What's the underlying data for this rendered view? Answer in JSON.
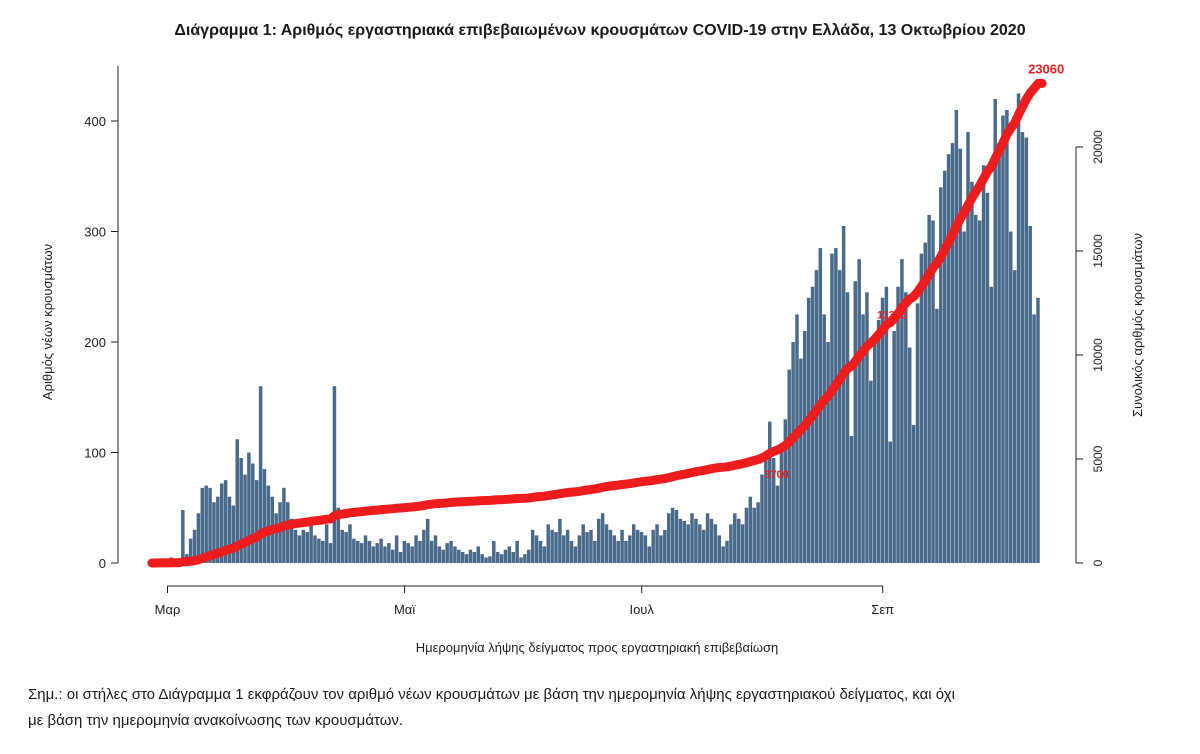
{
  "title": "Διάγραμμα 1: Αριθμός εργαστηριακά επιβεβαιωμένων κρουσμάτων COVID-19 στην Ελλάδα, 13 Οκτωβρίου 2020",
  "note_line1": "Σημ.: οι στήλες στο Διάγραμμα 1 εκφράζουν τον αριθμό νέων κρουσμάτων με βάση την ημερομηνία λήψης εργαστηριακού δείγματος, και όχι",
  "note_line2": "με βάση την ημερομηνία ανακοίνωσης των κρουσμάτων.",
  "colors": {
    "bars": "#4a6a8c",
    "line": "#ee1c1c",
    "axis": "#222222"
  },
  "chart_data": {
    "type": "bar",
    "title": "Διάγραμμα 1: Αριθμός εργαστηριακά επιβεβαιωμένων κρουσμάτων COVID-19 στην Ελλάδα, 13 Οκτωβρίου 2020",
    "xlabel": "Ημερομηνία λήψης δείγματος προς εργαστηριακή επιβεβαίωση",
    "ylabel": "Αριθμός νέων κρουσμάτων",
    "y2label": "Συνολικός αριθμός κρουσμάτων",
    "ylim": [
      0,
      450
    ],
    "y2lim": [
      0,
      22500
    ],
    "yticks": [
      0,
      100,
      200,
      300,
      400
    ],
    "y2ticks": [
      0,
      5000,
      10000,
      15000,
      20000
    ],
    "x_start": "2020-02-26",
    "x_end": "2020-10-12",
    "xticks": [
      {
        "date": "2020-03-01",
        "label": "Μαρ"
      },
      {
        "date": "2020-05-01",
        "label": "Μαϊ"
      },
      {
        "date": "2020-07-01",
        "label": "Ιουλ"
      },
      {
        "date": "2020-09-01",
        "label": "Σεπ"
      }
    ],
    "grid": false,
    "series": [
      {
        "name": "Νέα κρούσματα",
        "kind": "bar",
        "values": [
          1,
          0,
          2,
          1,
          3,
          5,
          2,
          0,
          48,
          8,
          22,
          30,
          45,
          68,
          70,
          68,
          55,
          60,
          72,
          75,
          60,
          52,
          112,
          95,
          80,
          100,
          90,
          75,
          160,
          85,
          70,
          60,
          45,
          55,
          68,
          55,
          40,
          30,
          25,
          30,
          28,
          35,
          25,
          22,
          20,
          35,
          18,
          160,
          50,
          30,
          28,
          35,
          22,
          20,
          18,
          25,
          20,
          15,
          18,
          22,
          15,
          18,
          12,
          25,
          10,
          20,
          18,
          15,
          25,
          20,
          30,
          40,
          20,
          25,
          15,
          12,
          18,
          20,
          15,
          12,
          10,
          8,
          12,
          10,
          15,
          8,
          5,
          6,
          20,
          10,
          8,
          12,
          15,
          10,
          20,
          5,
          8,
          12,
          30,
          25,
          20,
          15,
          35,
          30,
          28,
          40,
          25,
          30,
          20,
          15,
          25,
          35,
          28,
          30,
          20,
          40,
          45,
          35,
          30,
          25,
          20,
          30,
          20,
          25,
          35,
          30,
          28,
          25,
          15,
          30,
          35,
          25,
          30,
          45,
          50,
          48,
          40,
          38,
          35,
          45,
          40,
          35,
          30,
          45,
          40,
          35,
          25,
          15,
          20,
          35,
          45,
          40,
          35,
          50,
          60,
          50,
          55,
          80,
          100,
          128,
          95,
          70,
          105,
          130,
          175,
          200,
          225,
          185,
          210,
          240,
          250,
          265,
          285,
          225,
          200,
          280,
          285,
          265,
          305,
          245,
          115,
          255,
          275,
          225,
          245,
          165,
          200,
          220,
          240,
          250,
          110,
          210,
          250,
          275,
          245,
          195,
          125,
          235,
          280,
          290,
          315,
          310,
          230,
          340,
          355,
          370,
          380,
          410,
          375,
          300,
          390,
          345,
          315,
          310,
          360,
          335,
          250,
          420,
          380,
          405,
          410,
          300,
          265,
          425,
          390,
          385,
          305,
          225,
          240
        ],
        "cumulative_end": 23060
      },
      {
        "name": "Συνολικός αριθμός κρουσμάτων",
        "kind": "line",
        "labels": [
          {
            "date": "2020-07-31",
            "value": 3700,
            "text": "3700"
          },
          {
            "date": "2020-08-29",
            "value": 11365,
            "text": "11365"
          },
          {
            "date": "2020-10-12",
            "value": 23060,
            "text": "23060"
          }
        ]
      }
    ]
  }
}
